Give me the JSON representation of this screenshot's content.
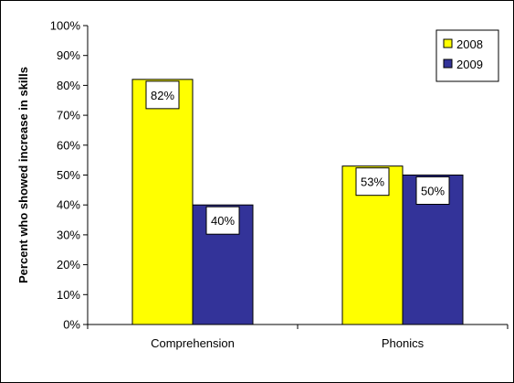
{
  "chart_data": {
    "type": "bar",
    "categories": [
      "Comprehension",
      "Phonics"
    ],
    "series": [
      {
        "name": "2008",
        "values": [
          82,
          53
        ],
        "color": "#ffff00",
        "data_labels": [
          "82%",
          "53%"
        ]
      },
      {
        "name": "2009",
        "values": [
          40,
          50
        ],
        "color": "#333399",
        "data_labels": [
          "40%",
          "50%"
        ]
      }
    ],
    "ylabel": "Percent who showed increase in skills",
    "ylim": [
      0,
      100
    ],
    "yticks": [
      "0%",
      "10%",
      "20%",
      "30%",
      "40%",
      "50%",
      "60%",
      "70%",
      "80%",
      "90%",
      "100%"
    ],
    "grid": false,
    "legend_position": "top-right"
  }
}
